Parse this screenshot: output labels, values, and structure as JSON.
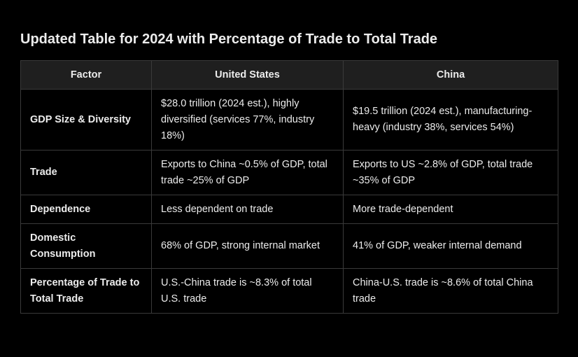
{
  "title": "Updated Table for 2024 with Percentage of Trade to Total Trade",
  "table": {
    "headers": [
      "Factor",
      "United States",
      "China"
    ],
    "rows": [
      {
        "factor": "GDP Size & Diversity",
        "us": "$28.0 trillion (2024 est.), highly diversified (services 77%, industry 18%)",
        "china": "$19.5 trillion (2024 est.), manufacturing-heavy (industry 38%, services 54%)"
      },
      {
        "factor": "Trade",
        "us": "Exports to China ~0.5% of GDP, total trade ~25% of GDP",
        "china": "Exports to US ~2.8% of GDP, total trade ~35% of GDP"
      },
      {
        "factor": "Dependence",
        "us": "Less dependent on trade",
        "china": "More trade-dependent"
      },
      {
        "factor": "Domestic Consumption",
        "us": "68% of GDP, strong internal market",
        "china": "41% of GDP, weaker internal demand"
      },
      {
        "factor": "Percentage of Trade to Total Trade",
        "us": "U.S.-China trade is ~8.3% of total U.S. trade",
        "china": "China-U.S. trade is ~8.6% of total China trade"
      }
    ]
  }
}
